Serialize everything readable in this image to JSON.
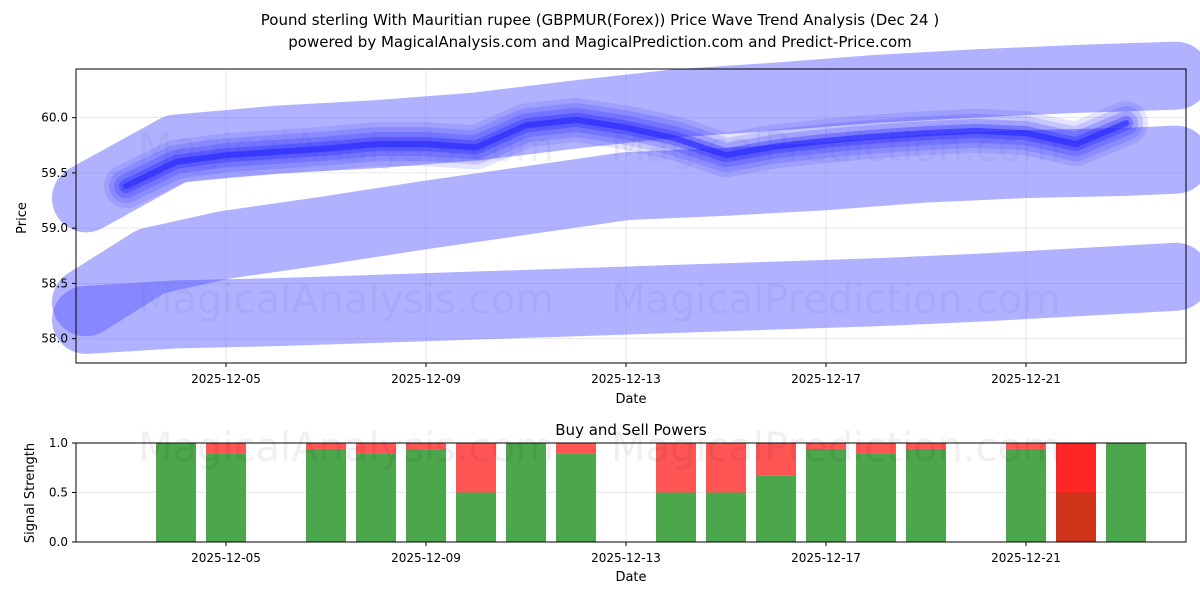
{
  "title": {
    "line1": "Pound sterling With Mauritian rupee (GBPMUR(Forex)) Price Wave Trend Analysis (Dec 24 )",
    "line2": "powered by MagicalAnalysis.com and MagicalPrediction.com and Predict-Price.com"
  },
  "watermarks": {
    "analysis": "MagicalAnalysis.com",
    "prediction": "MagicalPrediction.com"
  },
  "colors": {
    "band": "#5a5cff",
    "line": "#2323ff",
    "buy": "#4ca64c",
    "sell": "#ff4c4c",
    "sell_strong": "#ff1a1a",
    "overlap": "#cc3319"
  },
  "chart_data": [
    {
      "type": "area",
      "title": "",
      "xlabel": "Date",
      "ylabel": "Price",
      "x_ticks": [
        "2025-12-05",
        "2025-12-09",
        "2025-12-13",
        "2025-12-17",
        "2025-12-21"
      ],
      "y_ticks": [
        "58.0",
        "58.5",
        "59.0",
        "59.5",
        "60.0"
      ],
      "xlim": [
        2.0,
        24.2
      ],
      "ylim": [
        57.78,
        60.44
      ],
      "grid": true,
      "series": [
        {
          "name": "price wave",
          "x": [
            3,
            4,
            5,
            6,
            7,
            8,
            9,
            10,
            11,
            12,
            13,
            14,
            15,
            16,
            17,
            18,
            19,
            20,
            21,
            22,
            23
          ],
          "values": [
            59.38,
            59.6,
            59.66,
            59.69,
            59.72,
            59.76,
            59.76,
            59.73,
            59.93,
            59.98,
            59.91,
            59.81,
            59.66,
            59.74,
            59.79,
            59.83,
            59.86,
            59.88,
            59.86,
            59.76,
            59.95
          ]
        },
        {
          "name": "upper band",
          "x": [
            2.2,
            4,
            6,
            8,
            10,
            12,
            14,
            16,
            18,
            20,
            22,
            24
          ],
          "values": [
            59.27,
            59.72,
            59.8,
            59.85,
            59.92,
            60.03,
            60.13,
            60.19,
            60.26,
            60.31,
            60.35,
            60.38
          ]
        },
        {
          "name": "middle band",
          "x": [
            2.2,
            3.5,
            5,
            7,
            9,
            11,
            13,
            15,
            17,
            19,
            21,
            23,
            24
          ],
          "values": [
            58.33,
            58.7,
            58.85,
            58.98,
            59.12,
            59.25,
            59.38,
            59.42,
            59.47,
            59.54,
            59.58,
            59.6,
            59.62
          ]
        },
        {
          "name": "lower band",
          "x": [
            2.2,
            4,
            6,
            8,
            10,
            12,
            14,
            16,
            18,
            20,
            22,
            24
          ],
          "values": [
            58.17,
            58.22,
            58.24,
            58.27,
            58.3,
            58.33,
            58.36,
            58.39,
            58.42,
            58.46,
            58.51,
            58.56
          ]
        }
      ]
    },
    {
      "type": "bar",
      "title": "Buy and Sell Powers",
      "xlabel": "Date",
      "ylabel": "Signal Strength",
      "x_ticks": [
        "2025-12-05",
        "2025-12-09",
        "2025-12-13",
        "2025-12-17",
        "2025-12-21"
      ],
      "y_ticks": [
        "0.0",
        "0.5",
        "1.0"
      ],
      "ylim": [
        0,
        1
      ],
      "xlim": [
        2.0,
        24.2
      ],
      "series": [
        {
          "name": "buy",
          "x": [
            4,
            5,
            7,
            8,
            9,
            10,
            11,
            12,
            14,
            15,
            16,
            17,
            18,
            19,
            21,
            22,
            23
          ],
          "values": [
            1.0,
            0.89,
            0.94,
            0.89,
            0.93,
            0.5,
            1.0,
            0.89,
            0.5,
            0.5,
            0.67,
            0.94,
            0.89,
            0.94,
            0.94,
            0.5,
            1.0
          ]
        },
        {
          "name": "sell",
          "x": [
            4,
            5,
            7,
            8,
            9,
            10,
            11,
            12,
            14,
            15,
            16,
            17,
            18,
            19,
            21,
            22,
            23
          ],
          "values": [
            0.0,
            0.11,
            0.06,
            0.11,
            0.07,
            0.5,
            0.0,
            0.11,
            0.5,
            0.5,
            0.33,
            0.06,
            0.11,
            0.06,
            0.06,
            1.0,
            0.0
          ]
        }
      ]
    }
  ]
}
